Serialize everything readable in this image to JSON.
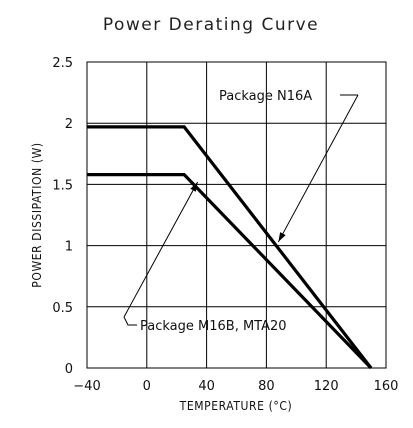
{
  "chart_data": {
    "type": "line",
    "title": "Power Derating Curve",
    "xlabel": "TEMPERATURE (°C)",
    "ylabel": "POWER DISSIPATION (W)",
    "xlim": [
      -40,
      160
    ],
    "ylim": [
      0,
      2.5
    ],
    "xticks": [
      "−40",
      "0",
      "40",
      "80",
      "120",
      "160"
    ],
    "xtick_values": [
      -40,
      0,
      40,
      80,
      120,
      160
    ],
    "yticks": [
      "0",
      "0.5",
      "1",
      "1.5",
      "2",
      "2.5"
    ],
    "ytick_values": [
      0,
      0.5,
      1,
      1.5,
      2,
      2.5
    ],
    "grid": true,
    "series": [
      {
        "name": "Package N16A",
        "x": [
          -40,
          25,
          150
        ],
        "y": [
          1.97,
          1.97,
          0
        ]
      },
      {
        "name": "Package M16B, MTA20",
        "x": [
          -40,
          25,
          150
        ],
        "y": [
          1.58,
          1.58,
          0
        ]
      }
    ],
    "annotations": [
      {
        "text": "Package N16A",
        "series": 0,
        "target": [
          88,
          1.03
        ]
      },
      {
        "text": "Package M16B, MTA20",
        "series": 1,
        "target": [
          34,
          1.52
        ]
      }
    ]
  }
}
